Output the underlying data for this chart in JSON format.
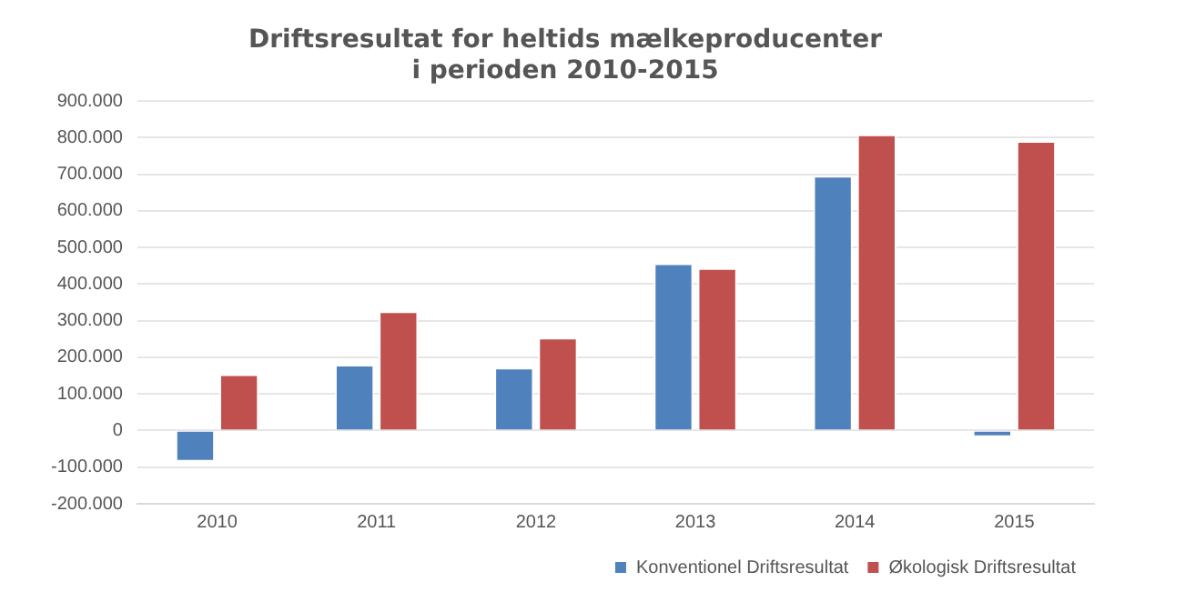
{
  "chart_data": {
    "type": "bar",
    "title": [
      "Driftsresultat for heltids mælkeproducenter",
      "i perioden 2010-2015"
    ],
    "categories": [
      "2010",
      "2011",
      "2012",
      "2013",
      "2014",
      "2015"
    ],
    "series": [
      {
        "name": "Konventionel Driftsresultat",
        "color": "#4f81bd",
        "values": [
          -85000,
          180000,
          172000,
          457000,
          696000,
          -18000
        ]
      },
      {
        "name": "Økologisk Driftsresultat",
        "color": "#c0504d",
        "values": [
          154000,
          326000,
          254000,
          444000,
          809000,
          791000
        ]
      }
    ],
    "ylim": [
      -200000,
      900000
    ],
    "yticks": [
      {
        "value": -200000,
        "label": "-200.000"
      },
      {
        "value": -100000,
        "label": "-100.000"
      },
      {
        "value": 0,
        "label": "0"
      },
      {
        "value": 100000,
        "label": "100.000"
      },
      {
        "value": 200000,
        "label": "200.000"
      },
      {
        "value": 300000,
        "label": "300.000"
      },
      {
        "value": 400000,
        "label": "400.000"
      },
      {
        "value": 500000,
        "label": "500.000"
      },
      {
        "value": 600000,
        "label": "600.000"
      },
      {
        "value": 700000,
        "label": "700.000"
      },
      {
        "value": 800000,
        "label": "800.000"
      },
      {
        "value": 900000,
        "label": "900.000"
      }
    ],
    "grid": "y",
    "legend": "bottom"
  }
}
